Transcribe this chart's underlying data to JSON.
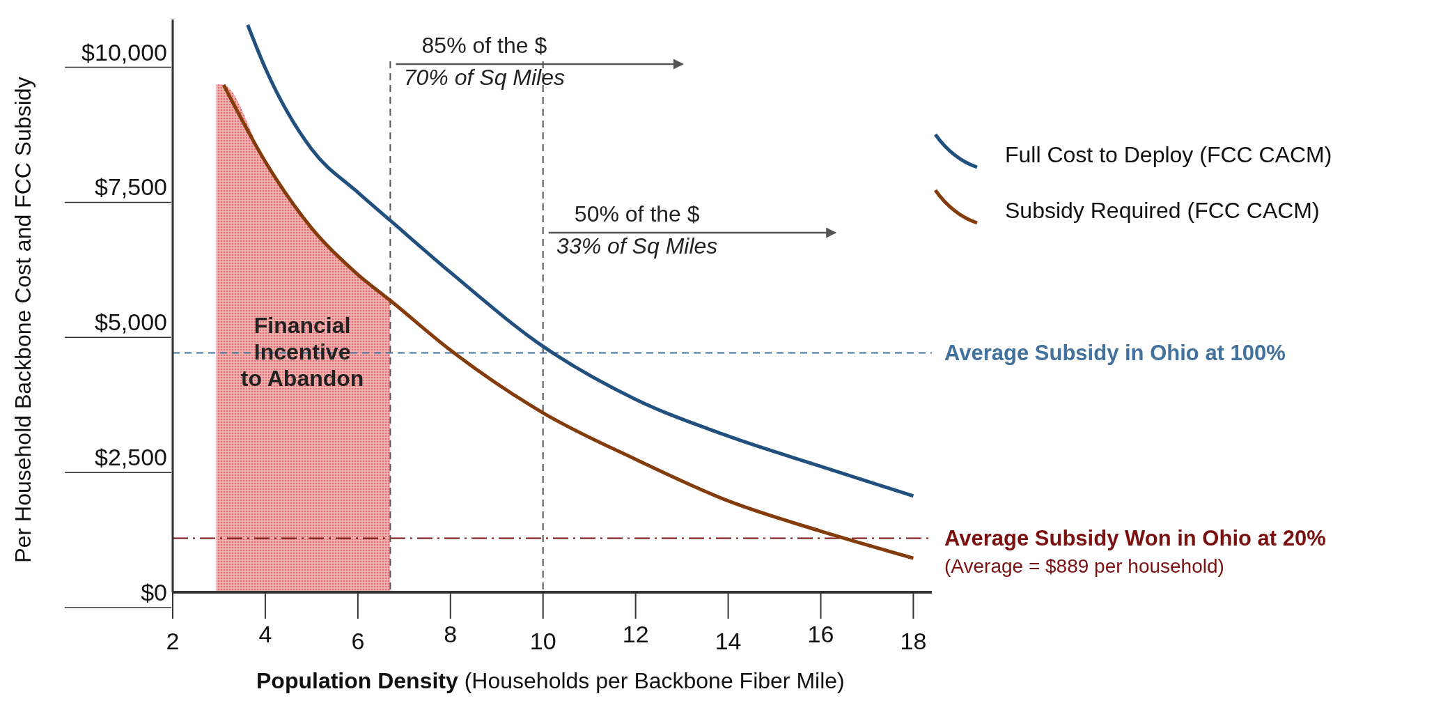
{
  "chart_data": {
    "type": "line",
    "xlabel": "Population Density (Households per Backbone Fiber Mile)",
    "ylabel": "Per Household Backbone Cost and FCC Subsidy",
    "xlim": [
      2,
      18.4
    ],
    "xticks": [
      2,
      4,
      6,
      8,
      10,
      12,
      14,
      16,
      18
    ],
    "ylim": [
      0,
      10600
    ],
    "yticks": [
      {
        "value": 0,
        "label": "$0"
      },
      {
        "value": 2500,
        "label": "$2,500"
      },
      {
        "value": 5000,
        "label": "$5,000"
      },
      {
        "value": 7500,
        "label": "$7,500"
      },
      {
        "value": 10000,
        "label": "$10,000"
      }
    ],
    "series": [
      {
        "name": "Full Cost to Deploy (FCC CACM)",
        "color": "#22507e",
        "x": [
          3.62,
          4,
          5,
          6,
          6.7,
          8,
          10,
          12,
          14,
          16,
          18
        ],
        "values": [
          10500,
          9700,
          8200,
          7400,
          6880,
          5920,
          4550,
          3570,
          2890,
          2330,
          1780
        ]
      },
      {
        "name": "Subsidy Required (FCC CACM)",
        "color": "#843c0c",
        "x": [
          3.1,
          4,
          5,
          6,
          6.7,
          8,
          10,
          12,
          14,
          16,
          18
        ],
        "values": [
          9390,
          7970,
          6740,
          5880,
          5400,
          4480,
          3320,
          2460,
          1690,
          1130,
          630
        ]
      },
      {
        "type": "area",
        "color": "#e05050",
        "x": [
          2.94,
          3.1,
          4,
          5,
          6,
          6.7
        ],
        "values": [
          9400,
          9390,
          7970,
          6740,
          5880,
          5400
        ]
      }
    ],
    "ref_lines": [
      {
        "axis": "y",
        "value": 4430,
        "label": "Average Subsidy in Ohio at 100%",
        "color": "#41719c",
        "line_style": "dashed"
      },
      {
        "axis": "y",
        "value": 1000,
        "label": "Average Subsidy Won in Ohio at 20%",
        "color": "#7b1010",
        "line_style": "dashdot"
      },
      {
        "axis": "x",
        "value": 6.7,
        "color": "#555555",
        "line_style": "dashed"
      },
      {
        "axis": "x",
        "value": 10,
        "color": "#555555",
        "line_style": "dashed"
      }
    ],
    "annotations": [
      "85% of the $",
      "70% of Sq Miles",
      "50% of the $",
      "33% of Sq Miles",
      "Financial Incentive to Abandon",
      "(Average = $889 per household)"
    ],
    "legend": "top right"
  }
}
